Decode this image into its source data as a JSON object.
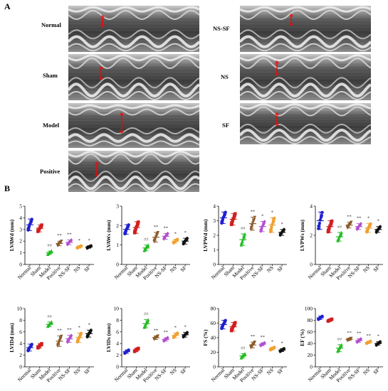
{
  "panels": {
    "a": "A",
    "b": "B"
  },
  "echo_images": [
    {
      "label": "Normal",
      "id": "normal"
    },
    {
      "label": "Sham",
      "id": "sham"
    },
    {
      "label": "Model",
      "id": "model"
    },
    {
      "label": "Positive",
      "id": "positive"
    },
    {
      "label": "NS-SF",
      "id": "ns-sf"
    },
    {
      "label": "NS",
      "id": "ns"
    },
    {
      "label": "SF",
      "id": "sf"
    }
  ],
  "colors": {
    "Normal": "#1f1fd0",
    "Sham": "#d01f1f",
    "Model": "#22bb22",
    "Positive": "#8b5a2b",
    "NS-SF": "#b050d0",
    "NS": "#f0a030",
    "SF": "#111111",
    "annotation_red": "#ff0000",
    "annotation_gray": "#777777"
  },
  "chart_data": [
    {
      "type": "scatter",
      "ylabel": "LVAWd (mm)",
      "ylim": [
        0,
        5
      ],
      "yticks": [
        0,
        1,
        2,
        3,
        4,
        5
      ],
      "categories": [
        "Normal",
        "Sham",
        "Model",
        "Positive",
        "NS-SF",
        "NS",
        "SF"
      ],
      "means": [
        3.4,
        3.1,
        1.0,
        1.8,
        1.9,
        1.5,
        1.5
      ],
      "sds": [
        0.5,
        0.3,
        0.15,
        0.2,
        0.2,
        0.1,
        0.1
      ],
      "marks": [
        "",
        "",
        "##",
        "**",
        "**",
        "*",
        "*"
      ]
    },
    {
      "type": "scatter",
      "ylabel": "LVAWs (mm)",
      "ylim": [
        0,
        3
      ],
      "yticks": [
        0,
        1,
        2,
        3
      ],
      "categories": [
        "Normal",
        "Sham",
        "Model",
        "Positive",
        "NS-SF",
        "NS",
        "SF"
      ],
      "means": [
        1.8,
        1.9,
        0.85,
        1.4,
        1.45,
        1.2,
        1.2
      ],
      "sds": [
        0.25,
        0.3,
        0.15,
        0.25,
        0.15,
        0.1,
        0.15
      ],
      "marks": [
        "",
        "",
        "##",
        "**",
        "**",
        "*",
        "*"
      ]
    },
    {
      "type": "scatter",
      "ylabel": "LVPWd (mm)",
      "ylim": [
        0,
        4
      ],
      "yticks": [
        0,
        1,
        2,
        3,
        4
      ],
      "categories": [
        "Normal",
        "Sham",
        "Model",
        "Positive",
        "NS-SF",
        "NS",
        "SF"
      ],
      "means": [
        3.2,
        3.1,
        1.7,
        2.8,
        2.6,
        2.7,
        2.2
      ],
      "sds": [
        0.4,
        0.4,
        0.4,
        0.45,
        0.35,
        0.5,
        0.2
      ],
      "marks": [
        "",
        "",
        "##",
        "**",
        "*",
        "*",
        "*"
      ]
    },
    {
      "type": "scatter",
      "ylabel": "LVPWs (mm)",
      "ylim": [
        0,
        4
      ],
      "yticks": [
        0,
        2,
        4
      ],
      "categories": [
        "Normal",
        "Sham",
        "Model",
        "Positive",
        "NS-SF",
        "NS",
        "SF"
      ],
      "means": [
        3.0,
        2.6,
        1.9,
        2.7,
        2.6,
        2.5,
        2.4
      ],
      "sds": [
        0.6,
        0.4,
        0.3,
        0.2,
        0.2,
        0.3,
        0.2
      ],
      "marks": [
        "",
        "",
        "##",
        "**",
        "**",
        "*",
        "*"
      ]
    },
    {
      "type": "scatter",
      "ylabel": "LVIDd (mm)",
      "ylim": [
        0,
        10
      ],
      "yticks": [
        0,
        2,
        4,
        6,
        8,
        10
      ],
      "categories": [
        "Normal",
        "Sham",
        "Model",
        "Positive",
        "NS-SF",
        "NS",
        "SF"
      ],
      "means": [
        3.3,
        3.6,
        7.3,
        4.4,
        4.8,
        5.0,
        5.7
      ],
      "sds": [
        0.6,
        0.4,
        0.4,
        0.9,
        0.6,
        0.8,
        0.6
      ],
      "marks": [
        "",
        "",
        "##",
        "**",
        "**",
        "*",
        "*"
      ]
    },
    {
      "type": "scatter",
      "ylabel": "LVIDs (mm)",
      "ylim": [
        0,
        10
      ],
      "yticks": [
        0,
        2,
        4,
        6,
        8,
        10
      ],
      "categories": [
        "Normal",
        "Sham",
        "Model",
        "Positive",
        "NS-SF",
        "NS",
        "SF"
      ],
      "means": [
        2.6,
        2.9,
        7.4,
        5.0,
        4.7,
        5.4,
        5.5
      ],
      "sds": [
        0.3,
        0.3,
        0.7,
        0.3,
        0.3,
        0.4,
        0.4
      ],
      "marks": [
        "",
        "",
        "##",
        "**",
        "**",
        "*",
        "*"
      ]
    },
    {
      "type": "scatter",
      "ylabel": "FS (%)",
      "ylim": [
        0,
        80
      ],
      "yticks": [
        0,
        20,
        40,
        60,
        80
      ],
      "categories": [
        "Normal",
        "Sham",
        "Model",
        "Positive",
        "NS-SF",
        "NS",
        "SF"
      ],
      "means": [
        58,
        55,
        15,
        30,
        31,
        25,
        23
      ],
      "sds": [
        6,
        6,
        3,
        4,
        2,
        2,
        2
      ],
      "marks": [
        "",
        "",
        "##",
        "**",
        "**",
        "*",
        "*"
      ]
    },
    {
      "type": "scatter",
      "ylabel": "EF (%)",
      "ylim": [
        0,
        100
      ],
      "yticks": [
        0,
        20,
        40,
        60,
        80,
        100
      ],
      "categories": [
        "Normal",
        "Sham",
        "Model",
        "Positive",
        "NS-SF",
        "NS",
        "SF"
      ],
      "means": [
        84,
        80,
        32,
        47,
        45,
        42,
        40
      ],
      "sds": [
        3,
        2,
        6,
        2,
        3,
        2,
        3
      ],
      "marks": [
        "",
        "",
        "##",
        "**",
        "**",
        "**",
        "*"
      ]
    }
  ]
}
